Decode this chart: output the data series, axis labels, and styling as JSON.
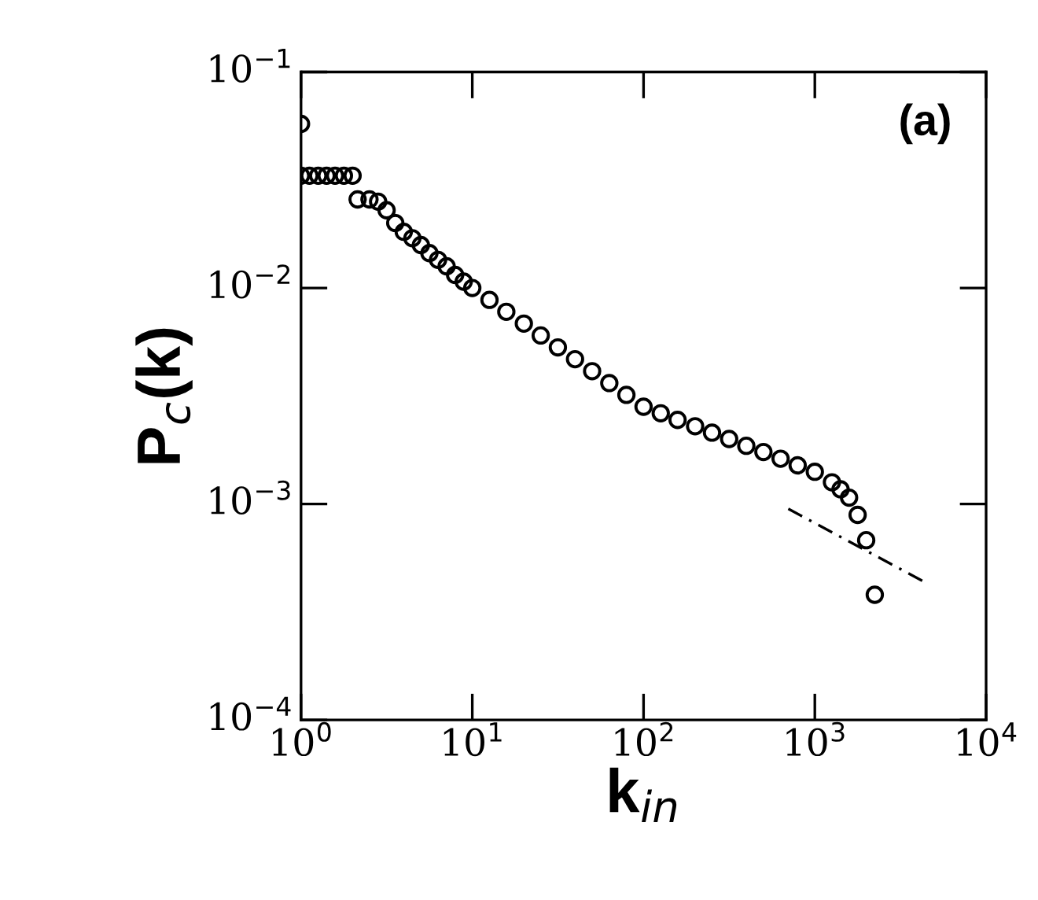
{
  "chart_data": {
    "type": "scatter",
    "xlabel": "k$_{in}$",
    "ylabel": "P$_{c}$(k)",
    "log": "xy",
    "grid": false,
    "annotations": [
      "(a)"
    ],
    "xlim": [
      1,
      10000
    ],
    "ylim": [
      0.0001,
      0.1
    ],
    "xticks": [
      {
        "value": 1,
        "label": "10$^{0}$"
      },
      {
        "value": 10,
        "label": "10$^{1}$"
      },
      {
        "value": 100,
        "label": "10$^{2}$"
      },
      {
        "value": 1000,
        "label": "10$^{3}$"
      },
      {
        "value": 10000,
        "label": "10$^{4}$"
      }
    ],
    "yticks": [
      {
        "value": 0.0001,
        "label": "10$^{−4}$"
      },
      {
        "value": 0.001,
        "label": "10$^{−3}$"
      },
      {
        "value": 0.01,
        "label": "10$^{−2}$"
      },
      {
        "value": 0.1,
        "label": "10$^{−1}$"
      }
    ],
    "series": [
      {
        "type": "scatter",
        "marker": "circle",
        "color": "#000000",
        "x": [
          1,
          1,
          1.12,
          1.26,
          1.41,
          1.58,
          1.78,
          2.0,
          2.14,
          2.51,
          2.82,
          3.16,
          3.55,
          3.98,
          4.47,
          5.01,
          5.62,
          6.31,
          7.08,
          7.94,
          8.91,
          10,
          12.6,
          15.8,
          20,
          25.1,
          31.6,
          39.8,
          50.1,
          63.1,
          79.4,
          100,
          126,
          158,
          200,
          251,
          316,
          398,
          501,
          631,
          794,
          1000,
          1259,
          1413,
          1585,
          1778,
          1995,
          2239
        ],
        "values": [
          0.0575,
          0.0331,
          0.0331,
          0.0331,
          0.0331,
          0.0331,
          0.0331,
          0.0331,
          0.0257,
          0.0257,
          0.0251,
          0.0229,
          0.02,
          0.0182,
          0.017,
          0.0158,
          0.0145,
          0.0135,
          0.0126,
          0.0115,
          0.0107,
          0.01,
          0.00881,
          0.00776,
          0.00684,
          0.00603,
          0.00531,
          0.00468,
          0.00412,
          0.00363,
          0.0032,
          0.00282,
          0.00263,
          0.00245,
          0.00229,
          0.00214,
          0.002,
          0.00186,
          0.00174,
          0.00162,
          0.00151,
          0.00141,
          0.00126,
          0.00117,
          0.00107,
          0.00089,
          0.00068,
          0.00038
        ]
      },
      {
        "type": "line",
        "line_style": "dashed",
        "marker": "none",
        "color": "#000000",
        "x": [
          700,
          4500
        ],
        "values": [
          0.00095,
          0.00043
        ]
      }
    ]
  }
}
